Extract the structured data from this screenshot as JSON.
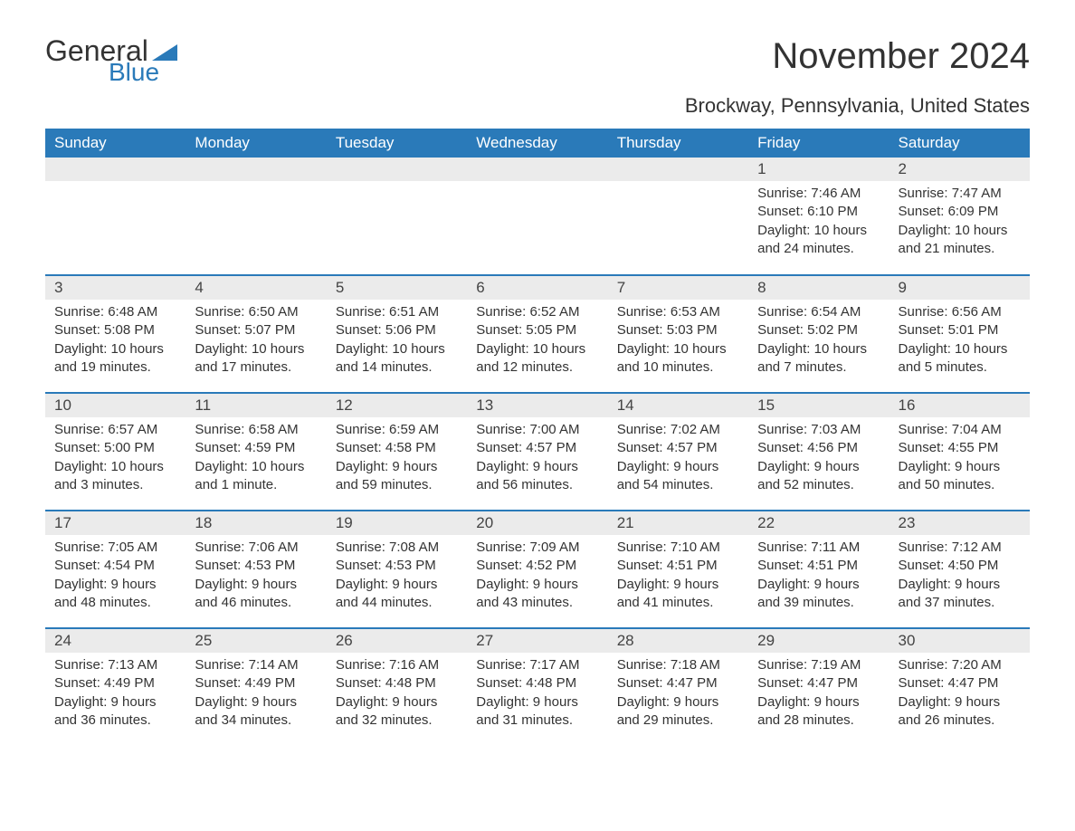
{
  "logo": {
    "word1": "General",
    "word2": "Blue"
  },
  "title": "November 2024",
  "subtitle": "Brockway, Pennsylvania, United States",
  "colors": {
    "header_bg": "#2a7ab9",
    "header_text": "#ffffff",
    "daynum_bg": "#ebebeb",
    "border": "#2a7ab9",
    "body_text": "#333333",
    "background": "#ffffff"
  },
  "typography": {
    "title_fontsize": 40,
    "subtitle_fontsize": 22,
    "header_fontsize": 17,
    "daynum_fontsize": 17,
    "content_fontsize": 15
  },
  "daysOfWeek": [
    "Sunday",
    "Monday",
    "Tuesday",
    "Wednesday",
    "Thursday",
    "Friday",
    "Saturday"
  ],
  "labels": {
    "sunrise": "Sunrise:",
    "sunset": "Sunset:",
    "daylight": "Daylight:"
  },
  "weeks": [
    [
      null,
      null,
      null,
      null,
      null,
      {
        "d": "1",
        "sr": "7:46 AM",
        "ss": "6:10 PM",
        "dl": "10 hours and 24 minutes."
      },
      {
        "d": "2",
        "sr": "7:47 AM",
        "ss": "6:09 PM",
        "dl": "10 hours and 21 minutes."
      }
    ],
    [
      {
        "d": "3",
        "sr": "6:48 AM",
        "ss": "5:08 PM",
        "dl": "10 hours and 19 minutes."
      },
      {
        "d": "4",
        "sr": "6:50 AM",
        "ss": "5:07 PM",
        "dl": "10 hours and 17 minutes."
      },
      {
        "d": "5",
        "sr": "6:51 AM",
        "ss": "5:06 PM",
        "dl": "10 hours and 14 minutes."
      },
      {
        "d": "6",
        "sr": "6:52 AM",
        "ss": "5:05 PM",
        "dl": "10 hours and 12 minutes."
      },
      {
        "d": "7",
        "sr": "6:53 AM",
        "ss": "5:03 PM",
        "dl": "10 hours and 10 minutes."
      },
      {
        "d": "8",
        "sr": "6:54 AM",
        "ss": "5:02 PM",
        "dl": "10 hours and 7 minutes."
      },
      {
        "d": "9",
        "sr": "6:56 AM",
        "ss": "5:01 PM",
        "dl": "10 hours and 5 minutes."
      }
    ],
    [
      {
        "d": "10",
        "sr": "6:57 AM",
        "ss": "5:00 PM",
        "dl": "10 hours and 3 minutes."
      },
      {
        "d": "11",
        "sr": "6:58 AM",
        "ss": "4:59 PM",
        "dl": "10 hours and 1 minute."
      },
      {
        "d": "12",
        "sr": "6:59 AM",
        "ss": "4:58 PM",
        "dl": "9 hours and 59 minutes."
      },
      {
        "d": "13",
        "sr": "7:00 AM",
        "ss": "4:57 PM",
        "dl": "9 hours and 56 minutes."
      },
      {
        "d": "14",
        "sr": "7:02 AM",
        "ss": "4:57 PM",
        "dl": "9 hours and 54 minutes."
      },
      {
        "d": "15",
        "sr": "7:03 AM",
        "ss": "4:56 PM",
        "dl": "9 hours and 52 minutes."
      },
      {
        "d": "16",
        "sr": "7:04 AM",
        "ss": "4:55 PM",
        "dl": "9 hours and 50 minutes."
      }
    ],
    [
      {
        "d": "17",
        "sr": "7:05 AM",
        "ss": "4:54 PM",
        "dl": "9 hours and 48 minutes."
      },
      {
        "d": "18",
        "sr": "7:06 AM",
        "ss": "4:53 PM",
        "dl": "9 hours and 46 minutes."
      },
      {
        "d": "19",
        "sr": "7:08 AM",
        "ss": "4:53 PM",
        "dl": "9 hours and 44 minutes."
      },
      {
        "d": "20",
        "sr": "7:09 AM",
        "ss": "4:52 PM",
        "dl": "9 hours and 43 minutes."
      },
      {
        "d": "21",
        "sr": "7:10 AM",
        "ss": "4:51 PM",
        "dl": "9 hours and 41 minutes."
      },
      {
        "d": "22",
        "sr": "7:11 AM",
        "ss": "4:51 PM",
        "dl": "9 hours and 39 minutes."
      },
      {
        "d": "23",
        "sr": "7:12 AM",
        "ss": "4:50 PM",
        "dl": "9 hours and 37 minutes."
      }
    ],
    [
      {
        "d": "24",
        "sr": "7:13 AM",
        "ss": "4:49 PM",
        "dl": "9 hours and 36 minutes."
      },
      {
        "d": "25",
        "sr": "7:14 AM",
        "ss": "4:49 PM",
        "dl": "9 hours and 34 minutes."
      },
      {
        "d": "26",
        "sr": "7:16 AM",
        "ss": "4:48 PM",
        "dl": "9 hours and 32 minutes."
      },
      {
        "d": "27",
        "sr": "7:17 AM",
        "ss": "4:48 PM",
        "dl": "9 hours and 31 minutes."
      },
      {
        "d": "28",
        "sr": "7:18 AM",
        "ss": "4:47 PM",
        "dl": "9 hours and 29 minutes."
      },
      {
        "d": "29",
        "sr": "7:19 AM",
        "ss": "4:47 PM",
        "dl": "9 hours and 28 minutes."
      },
      {
        "d": "30",
        "sr": "7:20 AM",
        "ss": "4:47 PM",
        "dl": "9 hours and 26 minutes."
      }
    ]
  ]
}
